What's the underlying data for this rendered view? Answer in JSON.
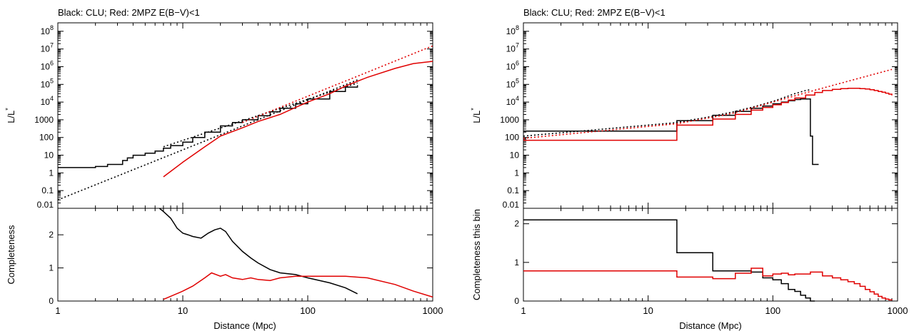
{
  "colors": {
    "clu": "#000000",
    "twompz": "#e00000",
    "axis": "#000000"
  },
  "chart_data": [
    {
      "id": "left",
      "title": "Black: CLU; Red: 2MPZ E(B−V)<1",
      "xlabel": "Distance (Mpc)",
      "xscale": "log",
      "xlim": [
        1,
        1000
      ],
      "xticks": [
        {
          "v": 1,
          "label": "1"
        },
        {
          "v": 10,
          "label": "10"
        },
        {
          "v": 100,
          "label": "100"
        },
        {
          "v": 1000,
          "label": "1000"
        }
      ],
      "top": {
        "type": "line",
        "ylabel": "L/L*",
        "yscale": "log",
        "ylim": [
          0.01,
          300000000
        ],
        "yticks": [
          {
            "v": 0.01,
            "label": "0.01"
          },
          {
            "v": 0.1,
            "label": "0.1"
          },
          {
            "v": 1,
            "label": "1"
          },
          {
            "v": 10,
            "label": "10"
          },
          {
            "v": 100,
            "label": "100"
          },
          {
            "v": 1000,
            "label": "1000"
          },
          {
            "v": 10000,
            "label": "10",
            "exp": "4"
          },
          {
            "v": 100000,
            "label": "10",
            "exp": "5"
          },
          {
            "v": 1000000,
            "label": "10",
            "exp": "6"
          },
          {
            "v": 10000000,
            "label": "10",
            "exp": "7"
          },
          {
            "v": 100000000,
            "label": "10",
            "exp": "8"
          }
        ],
        "series": [
          {
            "color": "clu",
            "style": "step",
            "x": [
              1,
              2,
              2.5,
              3.3,
              3.6,
              4,
              5,
              6,
              7,
              8,
              10,
              12,
              15,
              20,
              25,
              30,
              40,
              50,
              60,
              80,
              100,
              150,
              200,
              250
            ],
            "y": [
              2,
              2.3,
              3,
              5,
              7,
              10,
              13,
              17,
              25,
              35,
              55,
              100,
              200,
              450,
              700,
              1000,
              1700,
              2800,
              4500,
              8000,
              15000,
              40000,
              70000,
              90000
            ]
          },
          {
            "color": "clu",
            "style": "dotted",
            "x": [
              1,
              250
            ],
            "y": [
              0.03,
              180000
            ]
          },
          {
            "color": "clu",
            "style": "dotted",
            "x": [
              7,
              250
            ],
            "y": [
              30,
              120000
            ]
          },
          {
            "color": "twompz",
            "style": "solid",
            "x": [
              7,
              10,
              15,
              20,
              30,
              40,
              60,
              80,
              100,
              150,
              200,
              300,
              500,
              700,
              1000
            ],
            "y": [
              0.6,
              4,
              30,
              120,
              350,
              800,
              2000,
              5000,
              10000,
              30000,
              80000,
              250000,
              800000,
              1500000,
              2000000
            ]
          },
          {
            "color": "twompz",
            "style": "dotted",
            "x": [
              30,
              1000
            ],
            "y": [
              700,
              15000000
            ]
          }
        ]
      },
      "bottom": {
        "type": "line",
        "ylabel": "Completeness",
        "ylim": [
          0,
          2.8
        ],
        "yticks": [
          {
            "v": 0,
            "label": "0"
          },
          {
            "v": 1,
            "label": "1"
          },
          {
            "v": 2,
            "label": "2"
          }
        ],
        "series": [
          {
            "color": "clu",
            "style": "solid",
            "x": [
              6.5,
              7,
              7.5,
              8,
              8.5,
              9,
              10,
              11,
              12,
              14,
              16,
              18,
              20,
              22,
              25,
              30,
              35,
              40,
              50,
              60,
              80,
              100,
              150,
              200,
              250
            ],
            "y": [
              2.8,
              2.7,
              2.6,
              2.5,
              2.35,
              2.2,
              2.05,
              2.0,
              1.95,
              1.9,
              2.05,
              2.15,
              2.2,
              2.1,
              1.8,
              1.5,
              1.3,
              1.15,
              0.95,
              0.85,
              0.8,
              0.7,
              0.55,
              0.4,
              0.22
            ]
          },
          {
            "color": "twompz",
            "style": "solid",
            "x": [
              7,
              10,
              12,
              15,
              17,
              20,
              22,
              25,
              30,
              35,
              40,
              50,
              60,
              80,
              100,
              150,
              200,
              300,
              500,
              700,
              1000
            ],
            "y": [
              0.05,
              0.3,
              0.45,
              0.7,
              0.85,
              0.75,
              0.8,
              0.7,
              0.65,
              0.7,
              0.65,
              0.62,
              0.7,
              0.75,
              0.75,
              0.75,
              0.75,
              0.7,
              0.5,
              0.3,
              0.12
            ]
          }
        ]
      }
    },
    {
      "id": "right",
      "title": "Black: CLU; Red: 2MPZ E(B−V)<1",
      "xlabel": "Distance (Mpc)",
      "xscale": "log",
      "xlim": [
        1,
        1000
      ],
      "xticks": [
        {
          "v": 1,
          "label": "1"
        },
        {
          "v": 10,
          "label": "10"
        },
        {
          "v": 100,
          "label": "100"
        },
        {
          "v": 1000,
          "label": "1000"
        }
      ],
      "top": {
        "type": "line",
        "ylabel": "L/L*",
        "yscale": "log",
        "ylim": [
          0.01,
          300000000
        ],
        "yticks": [
          {
            "v": 0.01,
            "label": "0.01"
          },
          {
            "v": 0.1,
            "label": "0.1"
          },
          {
            "v": 1,
            "label": "1"
          },
          {
            "v": 10,
            "label": "10"
          },
          {
            "v": 100,
            "label": "100"
          },
          {
            "v": 1000,
            "label": "1000"
          },
          {
            "v": 10000,
            "label": "10",
            "exp": "4"
          },
          {
            "v": 100000,
            "label": "10",
            "exp": "5"
          },
          {
            "v": 1000000,
            "label": "10",
            "exp": "6"
          },
          {
            "v": 10000000,
            "label": "10",
            "exp": "7"
          },
          {
            "v": 100000000,
            "label": "10",
            "exp": "8"
          }
        ],
        "series": [
          {
            "color": "clu",
            "style": "step",
            "x": [
              1,
              17,
              33,
              50,
              67,
              83,
              100,
              117,
              133,
              150,
              167,
              183,
              200,
              208,
              217,
              233
            ],
            "y": [
              230,
              900,
              1800,
              3000,
              4500,
              6000,
              8000,
              10000,
              12000,
              14000,
              15000,
              15000,
              120,
              3,
              3,
              3
            ]
          },
          {
            "color": "clu",
            "style": "dotted",
            "x": [
              1,
              17,
              33,
              50,
              67,
              83,
              100,
              117,
              133,
              150,
              183,
              200
            ],
            "y": [
              120,
              700,
              1600,
              3000,
              5000,
              7500,
              11000,
              16000,
              22000,
              30000,
              45000,
              50000
            ]
          },
          {
            "color": "twompz",
            "style": "step",
            "x": [
              1,
              17,
              33,
              50,
              67,
              83,
              100,
              117,
              133,
              150,
              183,
              217,
              250,
              300,
              350,
              400,
              450,
              500,
              550,
              600,
              650,
              700,
              750,
              800,
              850,
              900
            ],
            "y": [
              70,
              500,
              1100,
              2000,
              3500,
              5000,
              7000,
              9500,
              13000,
              17000,
              25000,
              35000,
              45000,
              52000,
              58000,
              60000,
              60000,
              58000,
              55000,
              50000,
              45000,
              40000,
              36000,
              32000,
              28000,
              24000
            ]
          },
          {
            "color": "twompz",
            "style": "dotted",
            "x": [
              1,
              17,
              33,
              50,
              100,
              200,
              400,
              900
            ],
            "y": [
              90,
              600,
              1400,
              2500,
              10000,
              40000,
              150000,
              700000
            ]
          }
        ]
      },
      "bottom": {
        "type": "line",
        "ylabel": "Completeness this bin",
        "ylim": [
          0,
          2.4
        ],
        "yticks": [
          {
            "v": 0,
            "label": "0"
          },
          {
            "v": 1,
            "label": "1"
          },
          {
            "v": 2,
            "label": "2"
          }
        ],
        "series": [
          {
            "color": "clu",
            "style": "step",
            "x": [
              1,
              17,
              33,
              50,
              67,
              83,
              100,
              117,
              133,
              150,
              167,
              183,
              200,
              217
            ],
            "y": [
              2.1,
              1.25,
              0.78,
              0.78,
              0.75,
              0.6,
              0.55,
              0.45,
              0.3,
              0.25,
              0.15,
              0.08,
              0.0,
              0.0
            ]
          },
          {
            "color": "twompz",
            "style": "step",
            "x": [
              1,
              17,
              33,
              50,
              67,
              83,
              100,
              117,
              133,
              150,
              200,
              250,
              300,
              350,
              400,
              450,
              500,
              550,
              600,
              650,
              700,
              750,
              800,
              850,
              900
            ],
            "y": [
              0.78,
              0.62,
              0.58,
              0.72,
              0.85,
              0.65,
              0.7,
              0.72,
              0.68,
              0.7,
              0.75,
              0.65,
              0.6,
              0.55,
              0.5,
              0.45,
              0.38,
              0.3,
              0.24,
              0.18,
              0.12,
              0.08,
              0.05,
              0.03,
              0.02
            ]
          }
        ]
      }
    }
  ]
}
